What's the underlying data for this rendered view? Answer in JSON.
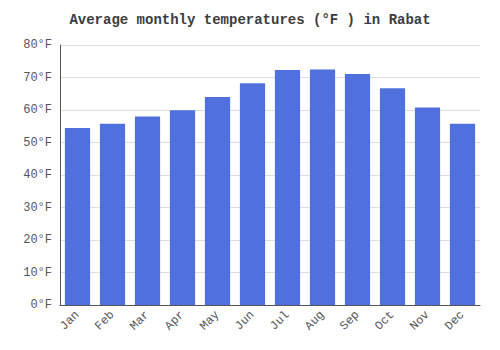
{
  "chart_data": {
    "type": "bar",
    "title": "Average monthly temperatures (°F ) in Rabat",
    "categories": [
      "Jan",
      "Feb",
      "Mar",
      "Apr",
      "May",
      "Jun",
      "Jul",
      "Aug",
      "Sep",
      "Oct",
      "Nov",
      "Dec"
    ],
    "values": [
      54.5,
      55.8,
      58.0,
      59.9,
      64.0,
      68.2,
      72.3,
      72.5,
      71.1,
      66.7,
      60.8,
      55.8
    ],
    "ylim": [
      0,
      80
    ],
    "yticks": [
      {
        "value": 0,
        "label": "0°F"
      },
      {
        "value": 10,
        "label": "10°F"
      },
      {
        "value": 20,
        "label": "20°F"
      },
      {
        "value": 30,
        "label": "30°F"
      },
      {
        "value": 40,
        "label": "40°F"
      },
      {
        "value": 50,
        "label": "50°F"
      },
      {
        "value": 60,
        "label": "60°F"
      },
      {
        "value": 70,
        "label": "70°F"
      },
      {
        "value": 80,
        "label": "80°F"
      }
    ],
    "grid": true
  }
}
